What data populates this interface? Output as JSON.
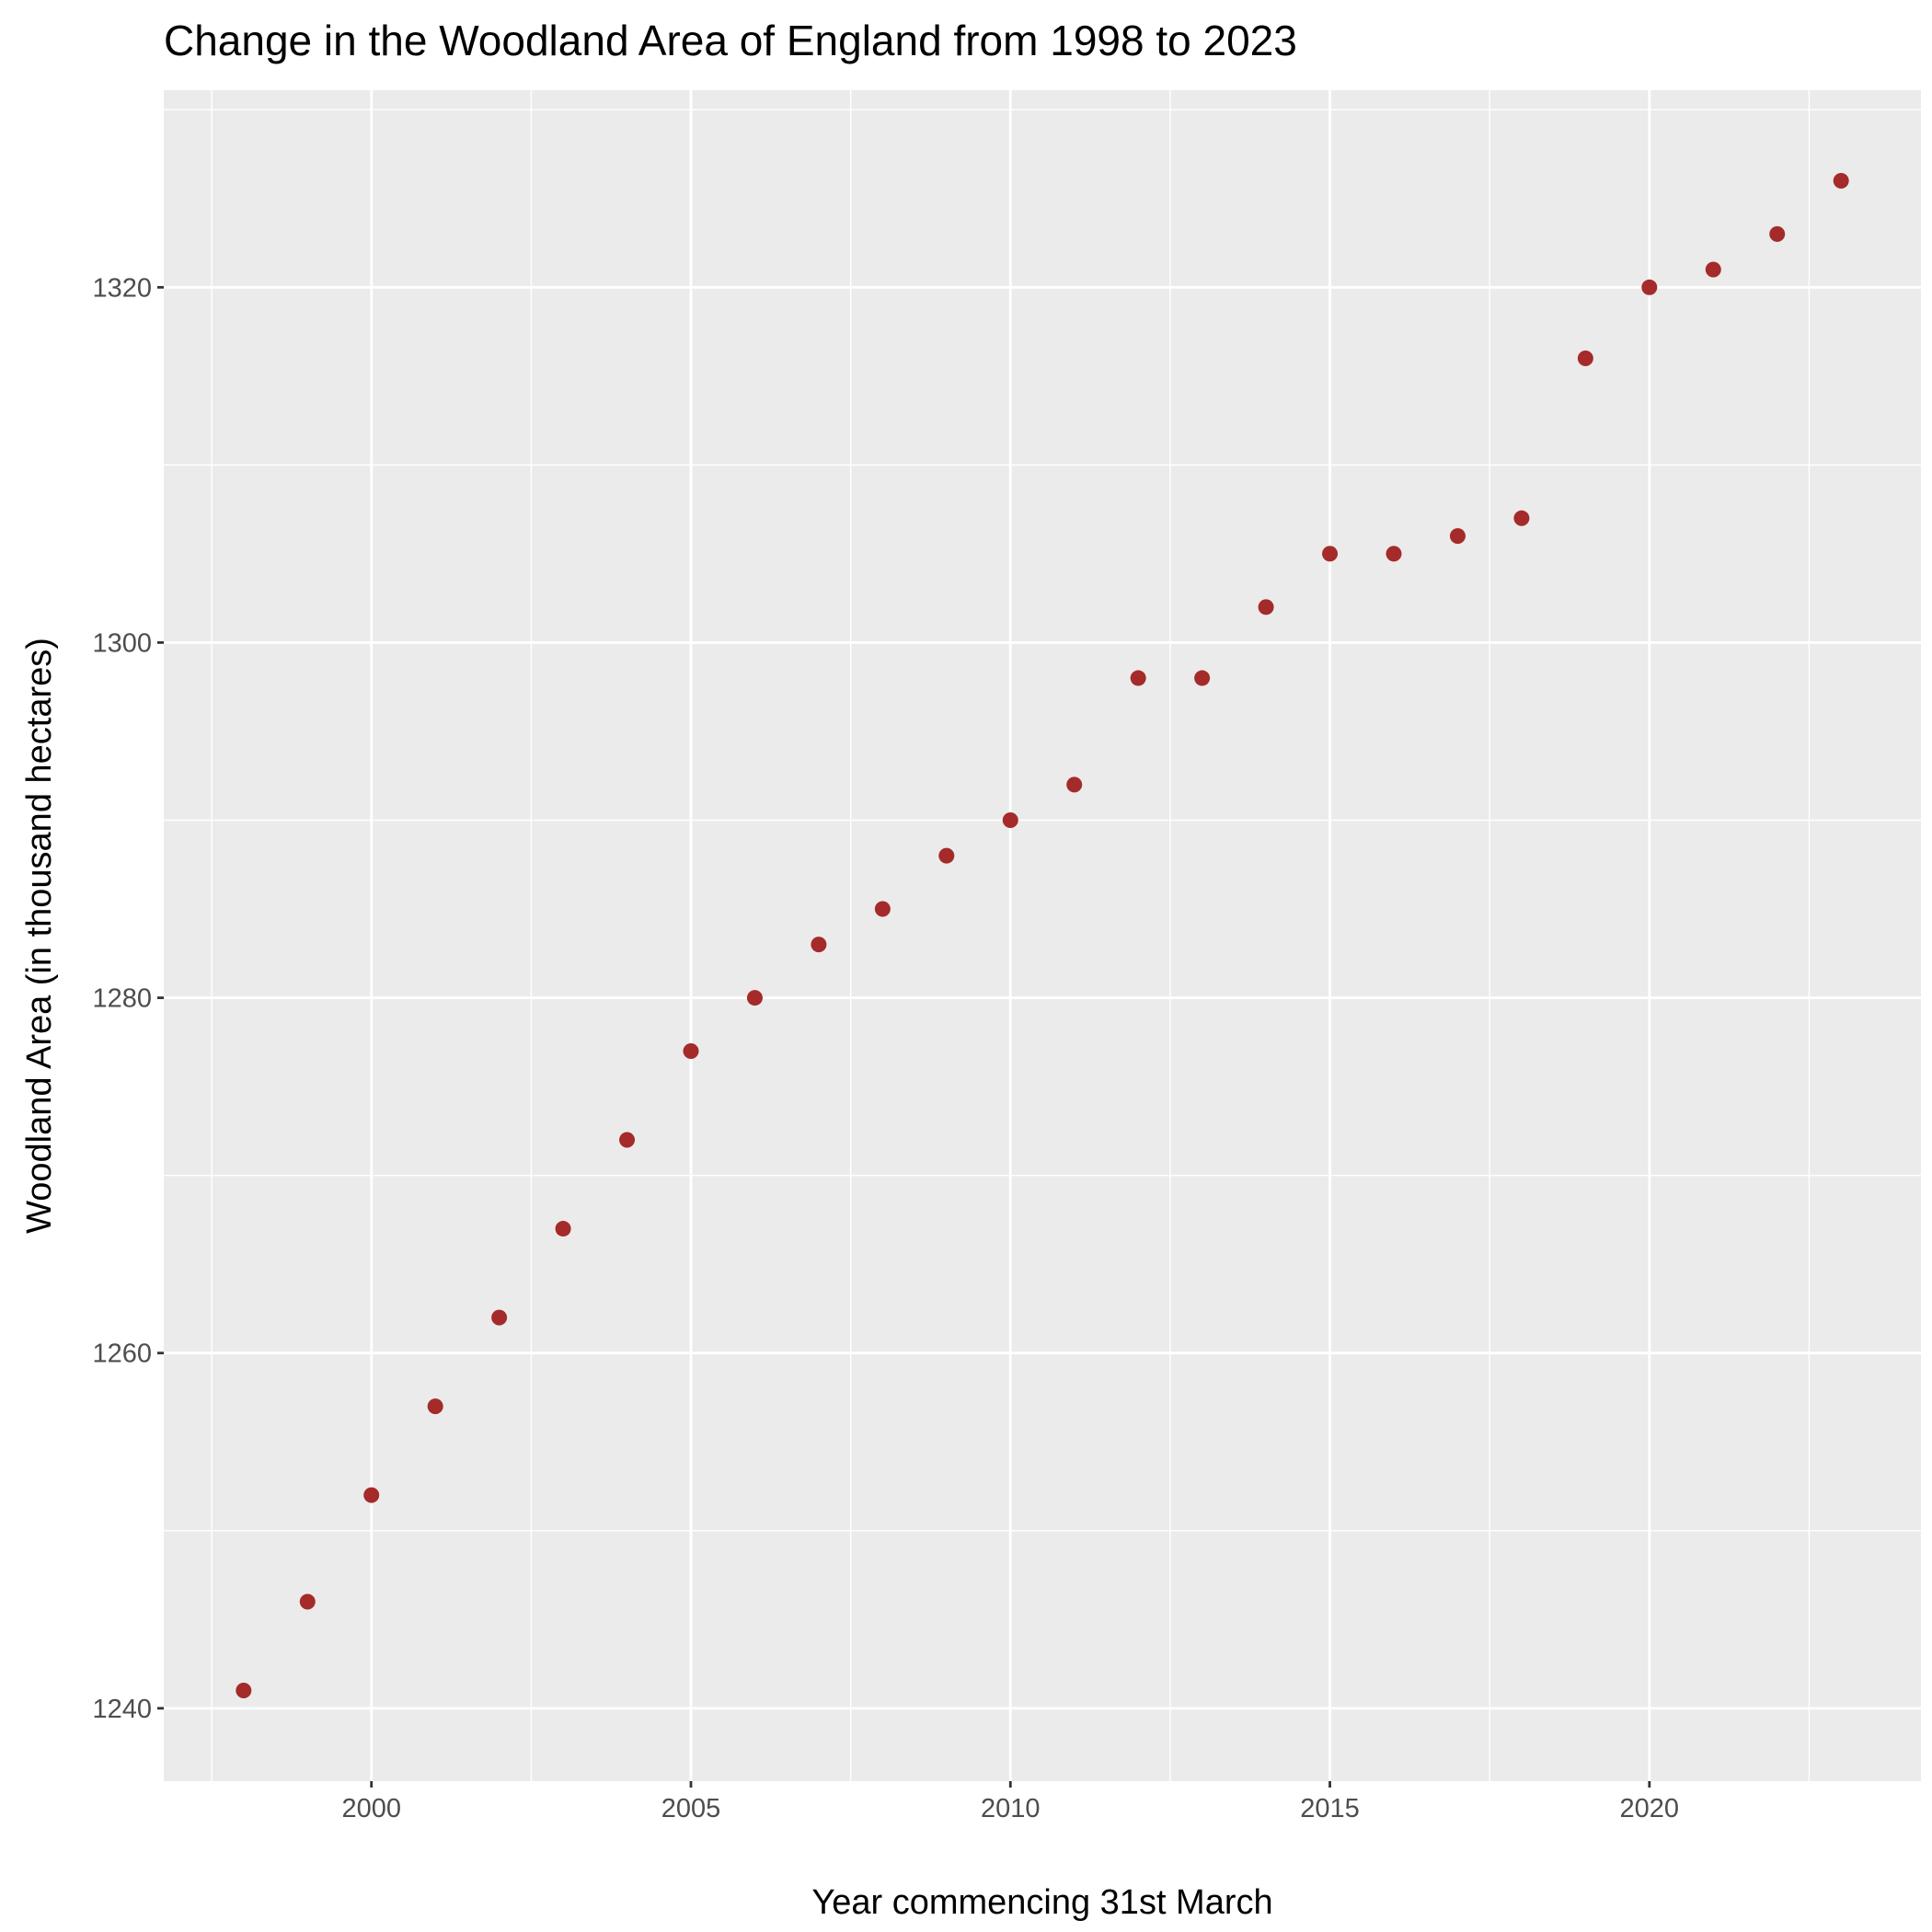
{
  "chart_data": {
    "type": "scatter",
    "title": "Change in the Woodland Area of England from 1998 to 2023",
    "xlabel": "Year commencing 31st March",
    "ylabel": "Woodland Area (in thousand hectares)",
    "xlim": [
      1996.75,
      2024.25
    ],
    "ylim": [
      1235.9,
      1331.1
    ],
    "x_ticks": [
      2000,
      2005,
      2010,
      2015,
      2020
    ],
    "x_tick_labels": [
      "2000",
      "2005",
      "2010",
      "2015",
      "2020"
    ],
    "y_ticks": [
      1240,
      1260,
      1280,
      1300,
      1320
    ],
    "y_tick_labels": [
      "1240",
      "1260",
      "1280",
      "1300",
      "1320"
    ],
    "grid": true,
    "legend": "none",
    "colors": {
      "panel": "#ebebeb",
      "grid": "#ffffff",
      "point": "#a52a2a"
    },
    "series": [
      {
        "x": [
          1998,
          1999,
          2000,
          2001,
          2002,
          2003,
          2004,
          2005,
          2006,
          2007,
          2008,
          2009,
          2010,
          2011,
          2012,
          2013,
          2014,
          2015,
          2016,
          2017,
          2018,
          2019,
          2020,
          2021,
          2022,
          2023
        ],
        "y": [
          1241,
          1246,
          1252,
          1257,
          1262,
          1267,
          1272,
          1277,
          1280,
          1283,
          1285,
          1288,
          1290,
          1292,
          1298,
          1298,
          1302,
          1305,
          1305,
          1306,
          1307,
          1316,
          1320,
          1321,
          1323,
          1326
        ]
      }
    ]
  }
}
